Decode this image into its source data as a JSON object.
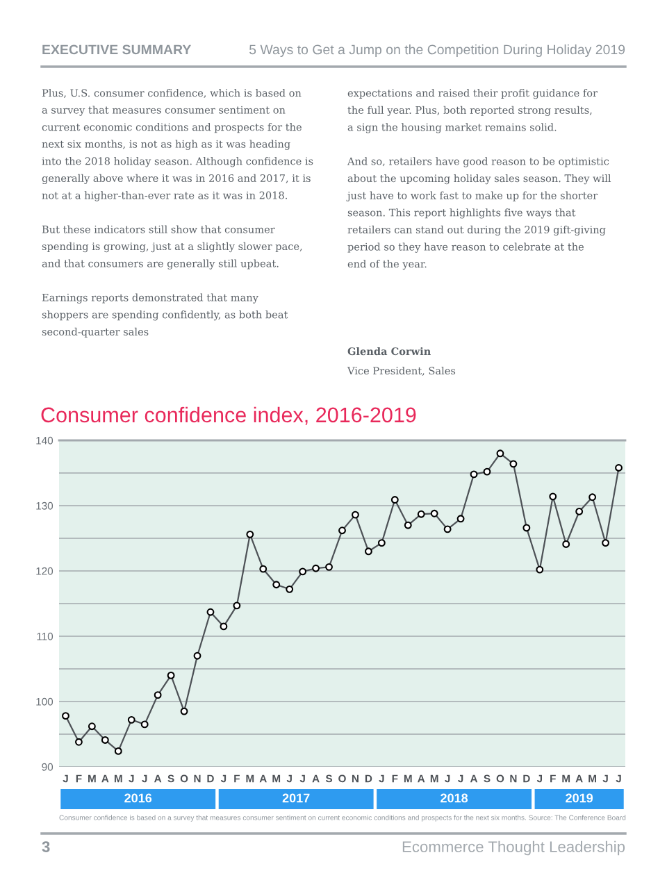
{
  "chart_data": {
    "type": "line",
    "title": "Consumer confidence index, 2016-2019",
    "categories": [
      "J",
      "F",
      "M",
      "A",
      "M",
      "J",
      "J",
      "A",
      "S",
      "O",
      "N",
      "D",
      "J",
      "F",
      "M",
      "A",
      "M",
      "J",
      "J",
      "A",
      "S",
      "O",
      "N",
      "D",
      "J",
      "F",
      "M",
      "A",
      "M",
      "J",
      "J",
      "A",
      "S",
      "O",
      "N",
      "D",
      "J",
      "F",
      "M",
      "A",
      "M",
      "J",
      "J"
    ],
    "values": [
      97.8,
      93.8,
      96.2,
      94.1,
      92.4,
      97.2,
      96.5,
      101.0,
      104.0,
      98.5,
      107.0,
      113.7,
      111.5,
      114.7,
      125.6,
      120.3,
      117.9,
      117.2,
      119.9,
      120.4,
      120.6,
      126.2,
      128.6,
      123.0,
      124.3,
      130.9,
      127.0,
      128.7,
      128.8,
      126.4,
      128.0,
      134.8,
      135.2,
      138.0,
      136.4,
      126.6,
      120.2,
      131.4,
      124.1,
      129.1,
      131.3,
      124.3,
      135.8
    ],
    "color": "#4d5156",
    "marker": "circle",
    "line_style": "solid",
    "ylim": [
      90,
      140
    ],
    "yticks": [
      90,
      {
        "value": 95,
        "label": null
      },
      100,
      {
        "value": 105,
        "label": null
      },
      110,
      {
        "value": 115,
        "label": null
      },
      120,
      {
        "value": 125,
        "label": null
      },
      130,
      {
        "value": 135,
        "label": null
      },
      140
    ],
    "grid": "y",
    "annotations": [
      "EXECUTIVE SUMMARY",
      "5 Ways to Get a Jump on the Competition During Holiday 2019",
      "Plus, U.S. consumer confidence, which is based on\na survey that measures consumer sentiment on\ncurrent economic conditions and prospects for the\nnext six months, is not as high as it was heading\ninto the 2018 holiday season. Although confidence is\ngenerally above where it was in 2016 and 2017, it is\nnot at a higher-than-ever rate as it was in 2018.\n\nBut these indicators still show that consumer\nspending is growing, just at a slightly slower pace,\nand that consumers are generally still upbeat.\n\nEarnings reports demonstrated that many\nshoppers are spending confidently, as both beat\nsecond-quarter sales",
      "expectations and raised their profit guidance for\nthe full year. Plus, both reported strong results,\na sign the housing market remains solid.\n\nAnd so, retailers have good reason to be optimistic\nabout the upcoming holiday sales season. They will\njust have to work fast to make up for the shorter\nseason. This report highlights five ways that\nretailers can stand out during the 2019 gift-giving\nperiod so they have reason to celebrate at the\nend of the year.",
      "Glenda Corwin",
      "Vice President, Sales",
      "2016",
      "2017",
      "2018",
      "2019",
      "Consumer confidence is based on a survey that measures consumer sentiment on current economic conditions and prospects for the next six months. Source: The Conference Board",
      "3",
      "Ecommerce Thought Leadership"
    ]
  }
}
